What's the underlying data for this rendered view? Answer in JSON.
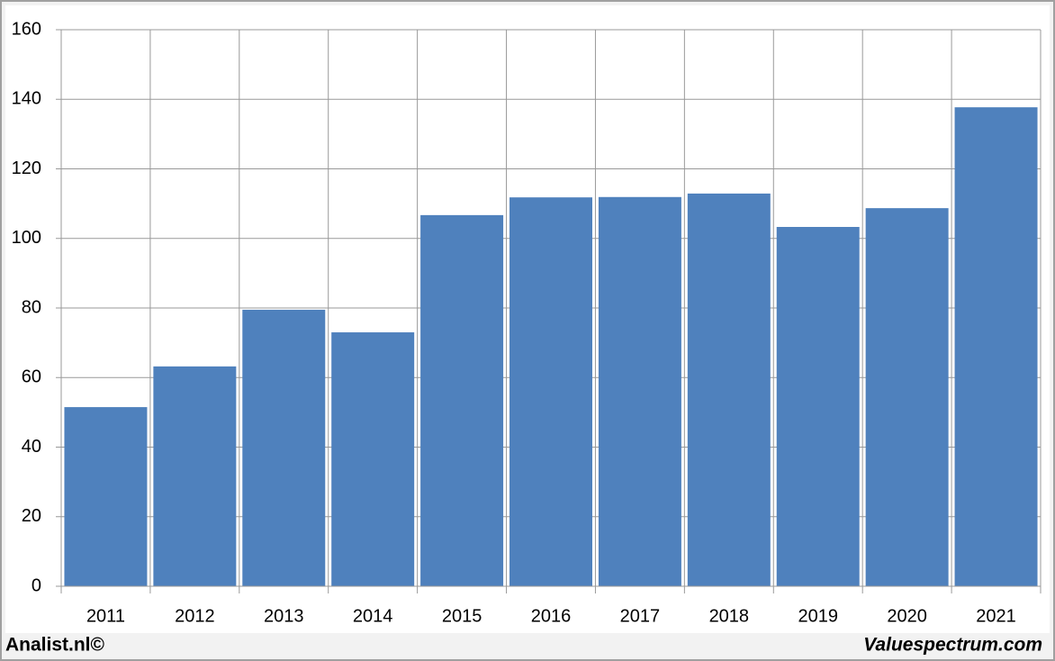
{
  "chart_data": {
    "type": "bar",
    "categories": [
      "2011",
      "2012",
      "2013",
      "2014",
      "2015",
      "2016",
      "2017",
      "2018",
      "2019",
      "2020",
      "2021"
    ],
    "values": [
      51.5,
      63.2,
      79.5,
      73,
      106.7,
      111.8,
      111.9,
      112.9,
      103.3,
      108.7,
      137.7
    ],
    "color": "#4f81bd",
    "ylim": [
      0,
      160
    ],
    "yticks": [
      0,
      20,
      40,
      60,
      80,
      100,
      120,
      140,
      160
    ],
    "grid": true
  },
  "footer": {
    "left": "Analist.nl©",
    "right": "Valuespectrum.com"
  }
}
